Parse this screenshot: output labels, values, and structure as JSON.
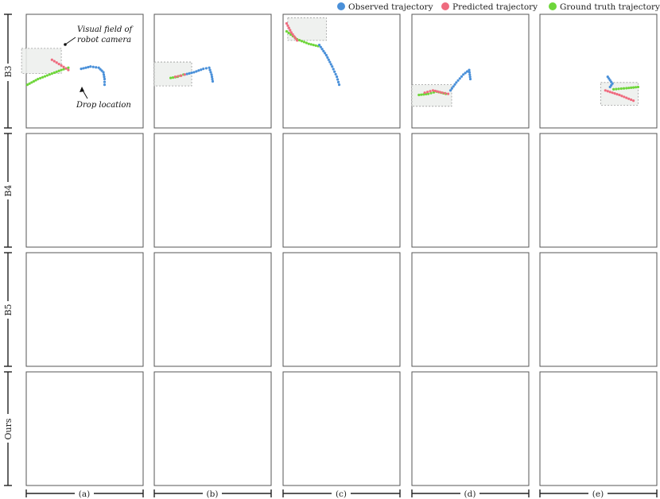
{
  "chart_data": {
    "type": "scatter",
    "legend": {
      "placement": "top-right",
      "entries": [
        {
          "label": "Observed trajectory",
          "color": "#4a90d9"
        },
        {
          "label": "Predicted trajectory",
          "color": "#ef6b7f"
        },
        {
          "label": "Ground truth trajectory",
          "color": "#6ed63a"
        }
      ]
    },
    "row_labels": [
      "B3",
      "B4",
      "B5",
      "Ours"
    ],
    "column_labels": [
      "(a)",
      "(b)",
      "(c)",
      "(d)",
      "(e)"
    ],
    "annotations": {
      "visual_field_line1": "Visual field of",
      "visual_field_line2": "robot camera",
      "drop_location": "Drop location"
    },
    "colors": {
      "observed": "#4a90d9",
      "predicted": "#ef6b7f",
      "ground_truth": "#6ed63a",
      "visual_field_fill": "#eceeec",
      "visual_field_stroke": "#9a9a9a"
    },
    "xlim": [
      0,
      1
    ],
    "ylim": [
      0,
      1
    ],
    "grid": false,
    "panels": [
      {
        "row": 0,
        "col": 0,
        "observed": [
          [
            0.47,
            0.52
          ],
          [
            0.55,
            0.54
          ],
          [
            0.62,
            0.53
          ],
          [
            0.66,
            0.49
          ],
          [
            0.67,
            0.43
          ],
          [
            0.67,
            0.38
          ]
        ],
        "predicted": [
          [
            0.22,
            0.6
          ],
          [
            0.3,
            0.55
          ],
          [
            0.36,
            0.51
          ]
        ],
        "ground_truth": [
          [
            0.01,
            0.38
          ],
          [
            0.1,
            0.43
          ],
          [
            0.2,
            0.47
          ],
          [
            0.3,
            0.51
          ],
          [
            0.36,
            0.53
          ]
        ],
        "view_box": [
          -0.04,
          0.48,
          0.3,
          0.7
        ]
      },
      {
        "row": 0,
        "col": 1,
        "observed": [
          [
            0.26,
            0.47
          ],
          [
            0.34,
            0.49
          ],
          [
            0.42,
            0.52
          ],
          [
            0.47,
            0.53
          ],
          [
            0.49,
            0.47
          ],
          [
            0.5,
            0.41
          ]
        ],
        "predicted": [
          [
            0.18,
            0.45
          ],
          [
            0.23,
            0.46
          ],
          [
            0.26,
            0.47
          ]
        ],
        "ground_truth": [
          [
            0.14,
            0.44
          ],
          [
            0.2,
            0.45
          ],
          [
            0.25,
            0.47
          ]
        ],
        "view_box": [
          0.0,
          0.37,
          0.32,
          0.58
        ]
      },
      {
        "row": 0,
        "col": 2,
        "observed": [
          [
            0.31,
            0.73
          ],
          [
            0.37,
            0.64
          ],
          [
            0.42,
            0.54
          ],
          [
            0.46,
            0.45
          ],
          [
            0.48,
            0.38
          ]
        ],
        "predicted": [
          [
            0.03,
            0.92
          ],
          [
            0.07,
            0.84
          ],
          [
            0.12,
            0.77
          ]
        ],
        "ground_truth": [
          [
            0.03,
            0.85
          ],
          [
            0.12,
            0.78
          ],
          [
            0.22,
            0.74
          ],
          [
            0.3,
            0.72
          ]
        ],
        "view_box": [
          0.04,
          0.77,
          0.37,
          0.97
        ]
      },
      {
        "row": 0,
        "col": 3,
        "observed": [
          [
            0.33,
            0.33
          ],
          [
            0.38,
            0.4
          ],
          [
            0.44,
            0.47
          ],
          [
            0.49,
            0.51
          ],
          [
            0.5,
            0.43
          ]
        ],
        "predicted": [
          [
            0.11,
            0.31
          ],
          [
            0.18,
            0.33
          ],
          [
            0.26,
            0.31
          ],
          [
            0.31,
            0.3
          ]
        ],
        "ground_truth": [
          [
            0.06,
            0.29
          ],
          [
            0.14,
            0.3
          ],
          [
            0.21,
            0.32
          ],
          [
            0.29,
            0.3
          ]
        ],
        "view_box": [
          0.0,
          0.19,
          0.34,
          0.38
        ]
      },
      {
        "row": 0,
        "col": 4,
        "observed": [
          [
            0.58,
            0.45
          ],
          [
            0.6,
            0.42
          ],
          [
            0.62,
            0.39
          ],
          [
            0.6,
            0.36
          ]
        ],
        "predicted": [
          [
            0.56,
            0.33
          ],
          [
            0.68,
            0.29
          ],
          [
            0.8,
            0.24
          ]
        ],
        "ground_truth": [
          [
            0.63,
            0.34
          ],
          [
            0.74,
            0.35
          ],
          [
            0.84,
            0.36
          ]
        ],
        "view_box": [
          0.52,
          0.2,
          0.84,
          0.4
        ]
      }
    ]
  }
}
